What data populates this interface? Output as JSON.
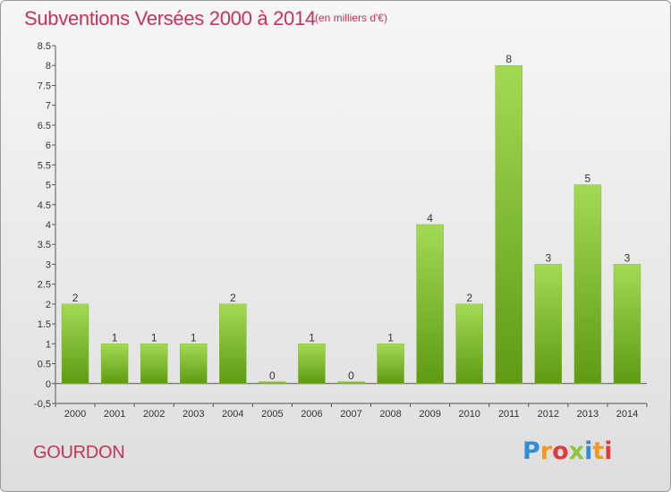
{
  "header": {
    "title": "Subventions Versées 2000 à 2014",
    "subtitle": "(en milliers d'€)"
  },
  "footer": {
    "city": "GOURDON",
    "logo_text": "Proxiti"
  },
  "colors": {
    "title": "#c8315b",
    "bar_light": "#9dd64a",
    "bar_dark": "#5e9b12"
  },
  "chart_data": {
    "type": "bar",
    "categories": [
      "2000",
      "2001",
      "2002",
      "2003",
      "2004",
      "2005",
      "2006",
      "2007",
      "2008",
      "2009",
      "2010",
      "2011",
      "2012",
      "2013",
      "2014"
    ],
    "values": [
      2,
      1,
      1,
      1,
      2,
      0,
      1,
      0,
      1,
      4,
      2,
      8,
      3,
      5,
      3
    ],
    "data_labels": [
      "2",
      "1",
      "1",
      "1",
      "2",
      "0",
      "1",
      "0",
      "1",
      "4",
      "2",
      "8",
      "3",
      "5",
      "3"
    ],
    "ylim": [
      -0.5,
      8.5
    ],
    "yticks": [
      "-0,5",
      "0",
      "0.5",
      "1",
      "1.5",
      "2",
      "2.5",
      "3",
      "3.5",
      "4",
      "4.5",
      "5",
      "5.5",
      "6",
      "6.5",
      "7",
      "7.5",
      "8",
      "8.5"
    ],
    "ytick_values": [
      -0.5,
      0,
      0.5,
      1,
      1.5,
      2,
      2.5,
      3,
      3.5,
      4,
      4.5,
      5,
      5.5,
      6,
      6.5,
      7,
      7.5,
      8,
      8.5
    ],
    "grid": false,
    "legend": "none"
  }
}
